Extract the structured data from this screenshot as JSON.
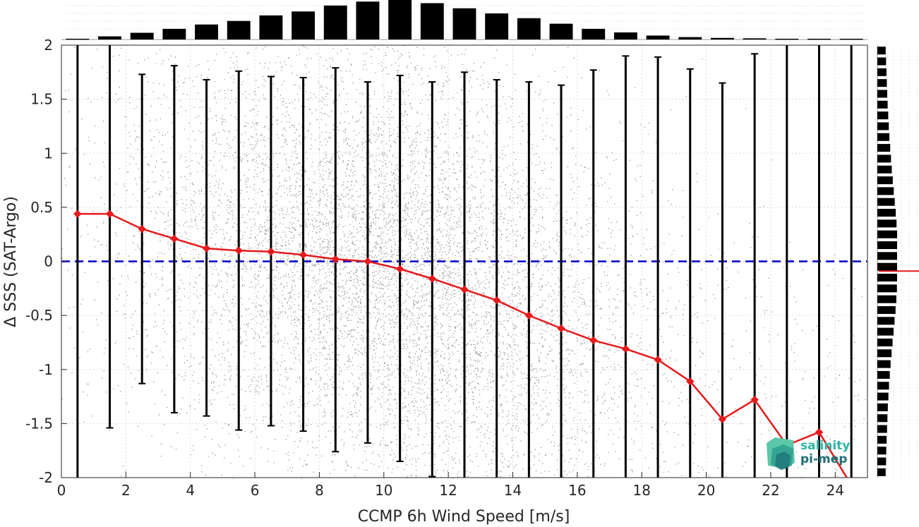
{
  "chart_data": {
    "type": "scatter",
    "title": "",
    "xlabel": "CCMP 6h Wind Speed [m/s]",
    "ylabel": "Δ SSS (SAT-Argo)",
    "xlim": [
      0,
      25
    ],
    "ylim": [
      -2,
      2
    ],
    "xticks": [
      0,
      2,
      4,
      6,
      8,
      10,
      12,
      14,
      16,
      18,
      20,
      22,
      24
    ],
    "yticks": [
      2,
      1.5,
      1,
      0.5,
      0,
      -0.5,
      -1,
      -1.5,
      -2
    ],
    "xtick_labels": [
      "0",
      "2",
      "4",
      "6",
      "8",
      "10",
      "12",
      "14",
      "16",
      "18",
      "20",
      "22",
      "24"
    ],
    "ytick_labels": [
      "2",
      "1.5",
      "1",
      "0.5",
      "0",
      "-0.5",
      "-1",
      "-1.5",
      "-2"
    ],
    "grid": true,
    "reference_line": {
      "y": 0,
      "color": "#0000cc",
      "style": "dashed"
    },
    "bin_centers": [
      0.5,
      1.5,
      2.5,
      3.5,
      4.5,
      5.5,
      6.5,
      7.5,
      8.5,
      9.5,
      10.5,
      11.5,
      12.5,
      13.5,
      14.5,
      15.5,
      16.5,
      17.5,
      18.5,
      19.5,
      20.5,
      21.5,
      22.5,
      23.5,
      24.5
    ],
    "series": [
      {
        "kind": "mean_line",
        "color": "#e41a1c",
        "x": [
          0.5,
          1.5,
          2.5,
          3.5,
          4.5,
          5.5,
          6.5,
          7.5,
          8.5,
          9.5,
          10.5,
          11.5,
          12.5,
          13.5,
          14.5,
          15.5,
          16.5,
          17.5,
          18.5,
          19.5,
          20.5,
          21.5,
          22.5,
          23.5,
          24.5
        ],
        "y": [
          0.44,
          0.44,
          0.3,
          0.21,
          0.12,
          0.1,
          0.09,
          0.06,
          0.02,
          0.0,
          -0.07,
          -0.16,
          -0.26,
          -0.36,
          -0.5,
          -0.62,
          -0.73,
          -0.81,
          -0.91,
          -1.11,
          -1.46,
          -1.28,
          -1.7,
          -1.58,
          -2.07
        ]
      },
      {
        "kind": "error_bars",
        "color": "#000000",
        "x": [
          0.5,
          1.5,
          2.5,
          3.5,
          4.5,
          5.5,
          6.5,
          7.5,
          8.5,
          9.5,
          10.5,
          11.5,
          12.5,
          13.5,
          14.5,
          15.5,
          16.5,
          17.5,
          18.5,
          19.5,
          20.5,
          21.5,
          22.5,
          23.5,
          24.5
        ],
        "upper": [
          2.0,
          2.0,
          1.73,
          1.81,
          1.68,
          1.76,
          1.71,
          1.7,
          1.79,
          1.66,
          1.72,
          1.66,
          1.75,
          1.68,
          1.66,
          1.63,
          1.77,
          1.9,
          1.89,
          1.78,
          1.65,
          1.92,
          2.0,
          2.0,
          2.0
        ],
        "lower": [
          -2.0,
          -1.54,
          -1.13,
          -1.4,
          -1.43,
          -1.56,
          -1.52,
          -1.57,
          -1.76,
          -1.68,
          -1.85,
          -1.99,
          -2.0,
          -2.0,
          -2.0,
          -2.0,
          -2.0,
          -2.0,
          -2.0,
          -2.0,
          -2.0,
          -2.0,
          -2.0,
          -2.0,
          -2.0
        ]
      }
    ],
    "scatter_color": "#8c8c8c",
    "top_histogram": {
      "bins": [
        0.5,
        1.5,
        2.5,
        3.5,
        4.5,
        5.5,
        6.5,
        7.5,
        8.5,
        9.5,
        10.5,
        11.5,
        12.5,
        13.5,
        14.5,
        15.5,
        16.5,
        17.5,
        18.5,
        19.5,
        20.5,
        21.5,
        22.5,
        23.5,
        24.5
      ],
      "relative_counts": [
        0.02,
        0.08,
        0.17,
        0.27,
        0.38,
        0.47,
        0.61,
        0.71,
        0.86,
        0.96,
        1.0,
        0.92,
        0.79,
        0.66,
        0.54,
        0.4,
        0.27,
        0.18,
        0.1,
        0.06,
        0.04,
        0.03,
        0.02,
        0.02,
        0.02
      ]
    },
    "right_histogram": {
      "ybins": [
        1.95,
        1.85,
        1.75,
        1.65,
        1.55,
        1.45,
        1.35,
        1.25,
        1.15,
        1.05,
        0.95,
        0.85,
        0.75,
        0.65,
        0.55,
        0.45,
        0.35,
        0.25,
        0.15,
        0.05,
        -0.05,
        -0.15,
        -0.25,
        -0.35,
        -0.45,
        -0.55,
        -0.65,
        -0.75,
        -0.85,
        -0.95,
        -1.05,
        -1.15,
        -1.25,
        -1.35,
        -1.45,
        -1.55,
        -1.65,
        -1.75,
        -1.85,
        -1.95
      ],
      "relative_counts": [
        0.42,
        0.44,
        0.46,
        0.48,
        0.5,
        0.52,
        0.55,
        0.58,
        0.61,
        0.65,
        0.69,
        0.73,
        0.78,
        0.83,
        0.88,
        0.93,
        0.97,
        1.0,
        1.0,
        1.0,
        1.0,
        1.0,
        0.99,
        0.96,
        0.92,
        0.87,
        0.82,
        0.77,
        0.72,
        0.67,
        0.63,
        0.59,
        0.56,
        0.53,
        0.51,
        0.49,
        0.47,
        0.45,
        0.44,
        0.42
      ],
      "mean_marker": -0.09,
      "mean_marker_color": "#e41a1c"
    }
  },
  "logo": {
    "line1": "salinity",
    "line2": "pi-mep",
    "color_primary": "#2bb5a5",
    "color_secondary": "#1d6f74"
  }
}
